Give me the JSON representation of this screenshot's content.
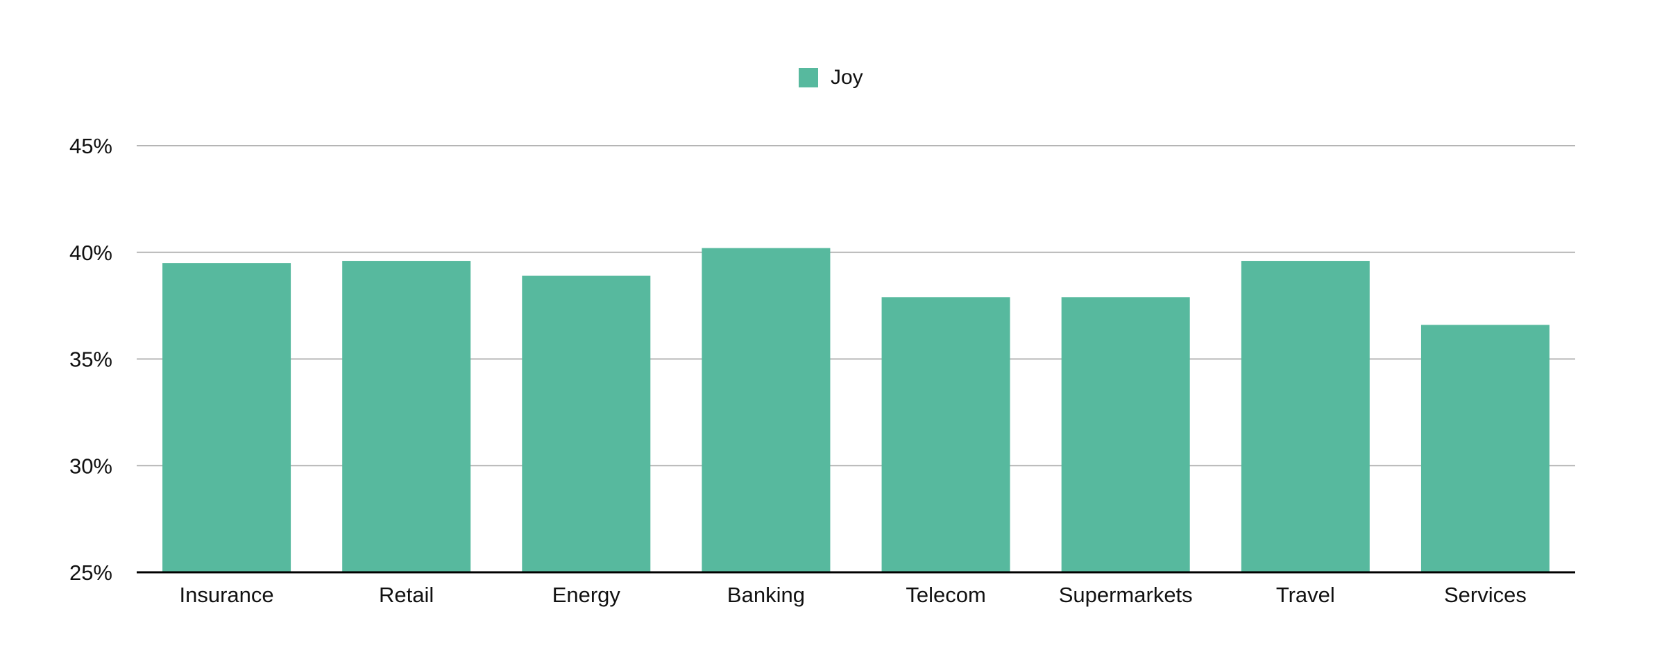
{
  "chart_data": {
    "type": "bar",
    "title": "",
    "xlabel": "",
    "ylabel": "",
    "categories": [
      "Insurance",
      "Retail",
      "Energy",
      "Banking",
      "Telecom",
      "Supermarkets",
      "Travel",
      "Services"
    ],
    "series": [
      {
        "name": "Joy",
        "color": "#57b99e",
        "values": [
          39.5,
          39.6,
          38.9,
          40.2,
          37.9,
          37.9,
          39.6,
          36.6
        ]
      }
    ],
    "ylim": [
      25,
      45
    ],
    "yticks": [
      25,
      30,
      35,
      40,
      45
    ],
    "ytick_labels": [
      "25%",
      "30%",
      "35%",
      "40%",
      "45%"
    ],
    "grid": true,
    "legend_position": "top-center"
  }
}
